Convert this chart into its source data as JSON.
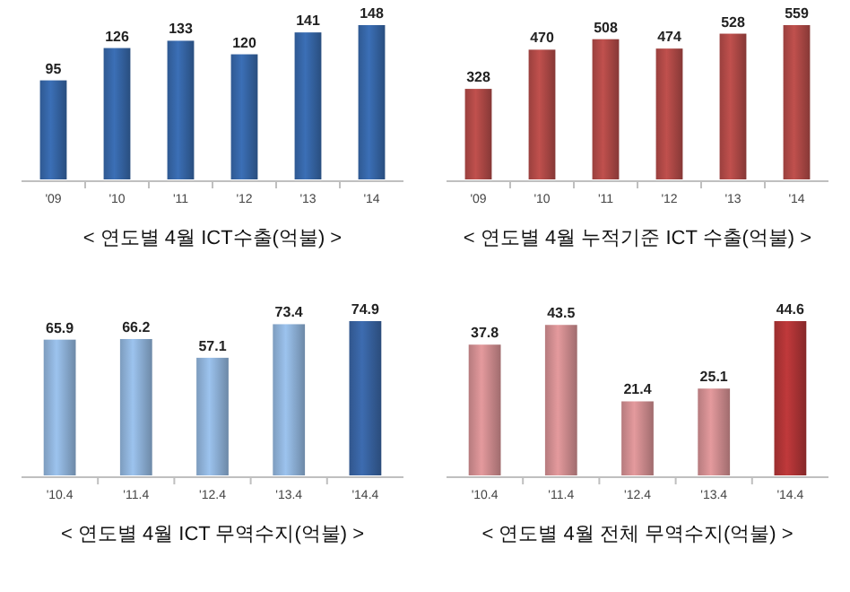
{
  "chart_data": [
    {
      "type": "bar",
      "title": "< 연도별 4월 ICT수출(억불) >",
      "categories": [
        "'09",
        "'10",
        "'11",
        "'12",
        "'13",
        "'14"
      ],
      "values": [
        95,
        126,
        133,
        120,
        141,
        148
      ],
      "color": "#3b6fb6",
      "data_labels": true
    },
    {
      "type": "bar",
      "title": "< 연도별 4월 누적기준 ICT 수출(억불) >",
      "categories": [
        "'09",
        "'10",
        "'11",
        "'12",
        "'13",
        "'14"
      ],
      "values": [
        328,
        470,
        508,
        474,
        528,
        559
      ],
      "color": "#c0504d",
      "data_labels": true
    },
    {
      "type": "bar",
      "title": "< 연도별 4월 ICT 무역수지(억불) >",
      "categories": [
        "'10.4",
        "'11.4",
        "'12.4",
        "'13.4",
        "'14.4"
      ],
      "values": [
        65.9,
        66.2,
        57.1,
        73.4,
        74.9
      ],
      "colors": [
        "#9cc3ee",
        "#9cc3ee",
        "#9cc3ee",
        "#9cc3ee",
        "#3d6cb0"
      ],
      "data_labels": true
    },
    {
      "type": "bar",
      "title": "< 연도별 4월 전체 무역수지(억불) >",
      "categories": [
        "'10.4",
        "'11.4",
        "'12.4",
        "'13.4",
        "'14.4"
      ],
      "values": [
        37.8,
        43.5,
        21.4,
        25.1,
        44.6
      ],
      "colors": [
        "#e49a9d",
        "#e49a9d",
        "#e49a9d",
        "#e49a9d",
        "#c0393b"
      ],
      "data_labels": true
    }
  ]
}
